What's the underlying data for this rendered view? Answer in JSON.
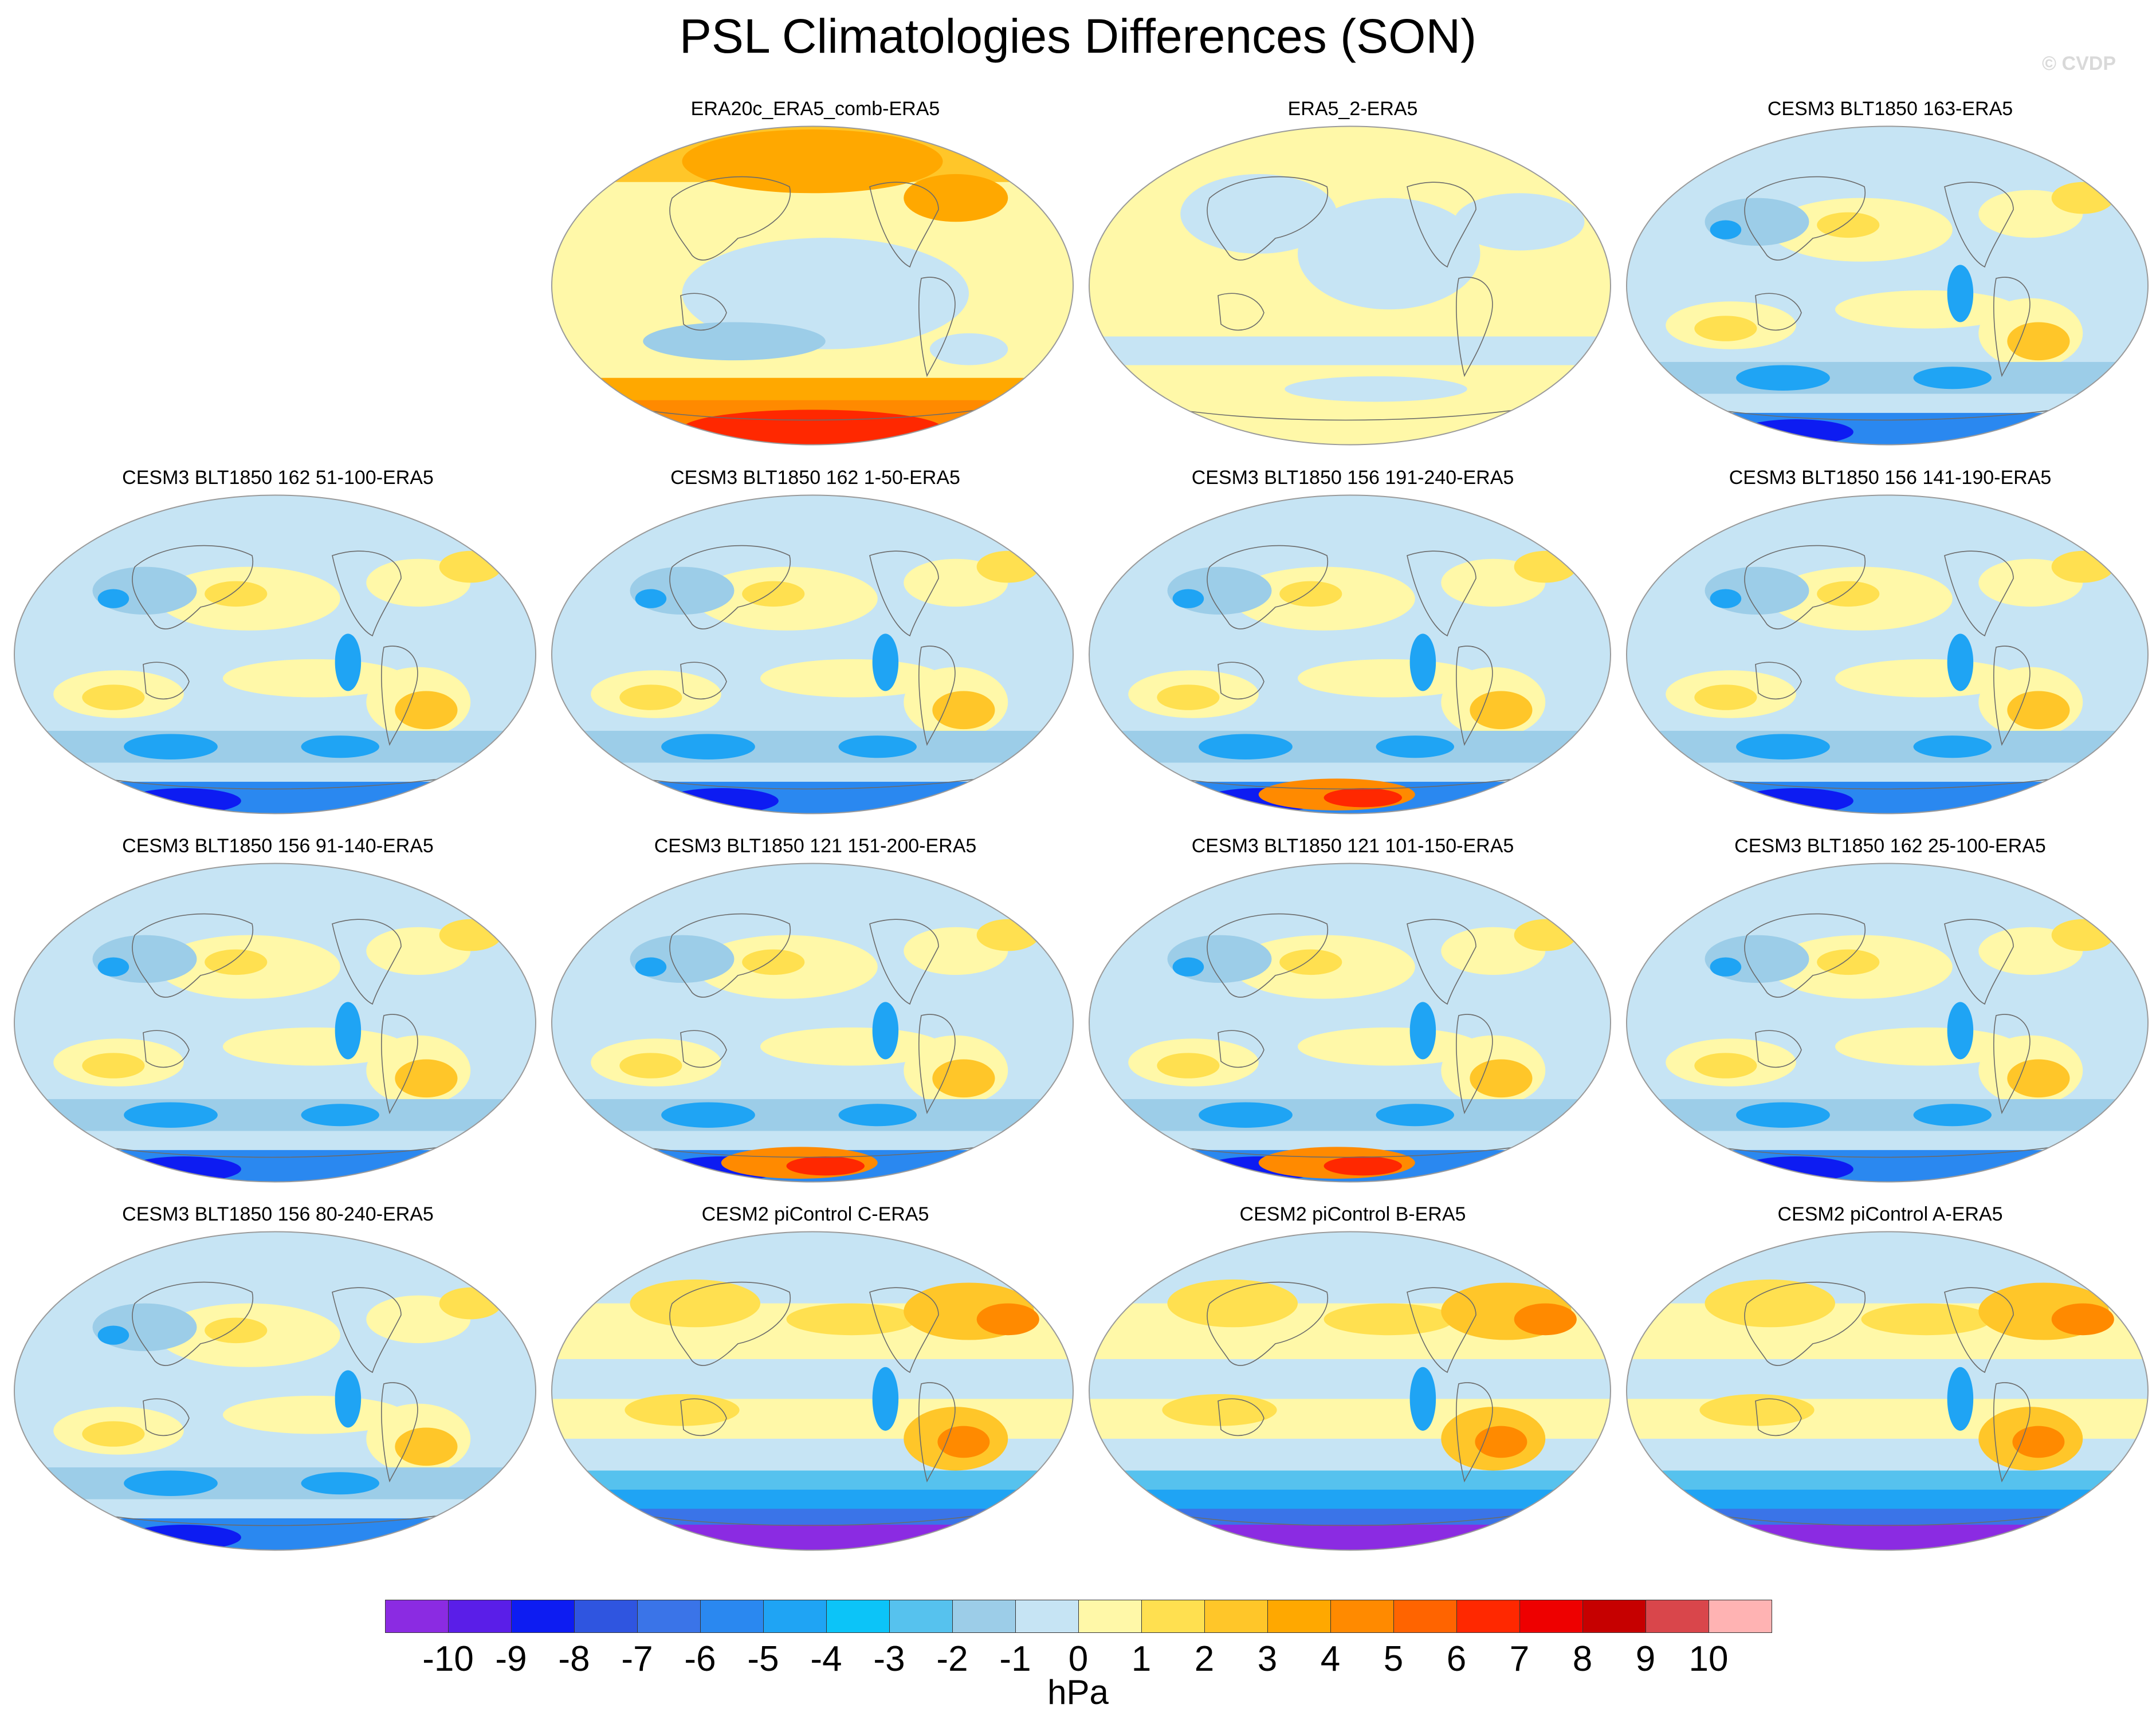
{
  "title": "PSL Climatologies Differences (SON)",
  "credit": "© CVDP",
  "colorbar": {
    "units": "hPa",
    "labels": [
      "-10",
      "-9",
      "-8",
      "-7",
      "-6",
      "-5",
      "-4",
      "-3",
      "-2",
      "-1",
      "0",
      "1",
      "2",
      "3",
      "4",
      "5",
      "6",
      "7",
      "8",
      "9",
      "10"
    ],
    "colors": [
      "#8b2be2",
      "#5a1ee8",
      "#0d1cf2",
      "#2f55e0",
      "#3a74e8",
      "#2a88f0",
      "#1fa4f4",
      "#0cc4f8",
      "#56c2ee",
      "#9ccde8",
      "#c6e4f4",
      "#fff8a8",
      "#ffe050",
      "#ffc629",
      "#ffa800",
      "#ff8a00",
      "#ff6400",
      "#ff2800",
      "#ee0000",
      "#c60000",
      "#d9464b",
      "#ffb3b3"
    ]
  },
  "panels": [
    {
      "title": "ERA20c_ERA5_comb-ERA5",
      "pattern": "era20c"
    },
    {
      "title": "ERA5_2-ERA5",
      "pattern": "era5"
    },
    {
      "title": "CESM3 BLT1850 163-ERA5",
      "pattern": "cesm3"
    },
    {
      "title": "CESM3 BLT1850 162 51-100-ERA5",
      "pattern": "cesm3"
    },
    {
      "title": "CESM3 BLT1850 162 1-50-ERA5",
      "pattern": "cesm3"
    },
    {
      "title": "CESM3 BLT1850 156 191-240-ERA5",
      "pattern": "cesm3warm"
    },
    {
      "title": "CESM3 BLT1850 156 141-190-ERA5",
      "pattern": "cesm3"
    },
    {
      "title": "CESM3 BLT1850 156 91-140-ERA5",
      "pattern": "cesm3"
    },
    {
      "title": "CESM3 BLT1850 121 151-200-ERA5",
      "pattern": "cesm3warm"
    },
    {
      "title": "CESM3 BLT1850 121 101-150-ERA5",
      "pattern": "cesm3warm"
    },
    {
      "title": "CESM3 BLT1850 162 25-100-ERA5",
      "pattern": "cesm3"
    },
    {
      "title": "CESM3 BLT1850 156 80-240-ERA5",
      "pattern": "cesm3"
    },
    {
      "title": "CESM2 piControl C-ERA5",
      "pattern": "cesm2"
    },
    {
      "title": "CESM2 piControl B-ERA5",
      "pattern": "cesm2"
    },
    {
      "title": "CESM2 piControl A-ERA5",
      "pattern": "cesm2"
    }
  ]
}
